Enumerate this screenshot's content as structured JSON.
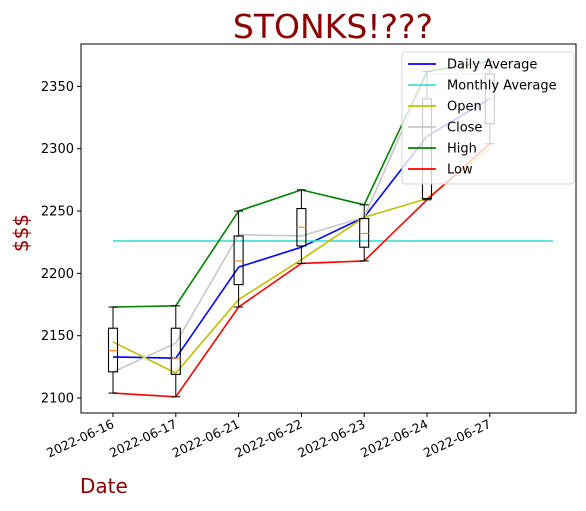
{
  "chart_data": {
    "type": "line",
    "title": "STONKS!???",
    "xlabel": "Date",
    "ylabel": "$$$",
    "categories": [
      "2022-06-16",
      "2022-06-17",
      "2022-06-21",
      "2022-06-22",
      "2022-06-23",
      "2022-06-24",
      "2022-06-27"
    ],
    "ylim": [
      2088,
      2384
    ],
    "yticks": [
      2100,
      2150,
      2200,
      2250,
      2300,
      2350
    ],
    "grid": false,
    "legend": "top-right",
    "colors": {
      "title": "#8b0000",
      "axis_label": "#8b0000",
      "box": "#000000",
      "median": "#ff8c1a"
    },
    "series": [
      {
        "name": "Daily Average",
        "color": "#0000ff",
        "values": [
          2133,
          2132,
          2205,
          2221,
          2245,
          2310,
          2340
        ]
      },
      {
        "name": "Monthly Average",
        "color": "#40e0d0",
        "values": [
          2226,
          2226,
          2226,
          2226,
          2226,
          2226,
          2226
        ],
        "extend_right": true
      },
      {
        "name": "Open",
        "color": "#bfbf00",
        "values": [
          2145,
          2120,
          2179,
          2211,
          2245,
          2260,
          2300
        ]
      },
      {
        "name": "Close",
        "color": "#c8c8c8",
        "values": [
          2121,
          2144,
          2231,
          2230,
          2245,
          2360,
          2360
        ]
      },
      {
        "name": "High",
        "color": "#008000",
        "values": [
          2173,
          2174,
          2250,
          2267,
          2255,
          2362,
          2370
        ]
      },
      {
        "name": "Low",
        "color": "#ff0000",
        "values": [
          2104,
          2101,
          2173,
          2208,
          2210,
          2259,
          2304
        ]
      }
    ],
    "boxes": [
      {
        "q1": 2121,
        "median": 2138,
        "q3": 2156,
        "whisker_low": 2104,
        "whisker_high": 2173
      },
      {
        "q1": 2119,
        "median": 2132,
        "q3": 2156,
        "whisker_low": 2101,
        "whisker_high": 2174
      },
      {
        "q1": 2191,
        "median": 2210,
        "q3": 2230,
        "whisker_low": 2173,
        "whisker_high": 2250
      },
      {
        "q1": 2222,
        "median": 2237,
        "q3": 2252,
        "whisker_low": 2208,
        "whisker_high": 2267
      },
      {
        "q1": 2221,
        "median": 2232,
        "q3": 2244,
        "whisker_low": 2210,
        "whisker_high": 2255
      },
      {
        "q1": 2260,
        "median": 2310,
        "q3": 2340,
        "whisker_low": 2259,
        "whisker_high": 2362
      },
      {
        "q1": 2320,
        "median": 2340,
        "q3": 2360,
        "whisker_low": 2304,
        "whisker_high": 2370
      }
    ]
  }
}
